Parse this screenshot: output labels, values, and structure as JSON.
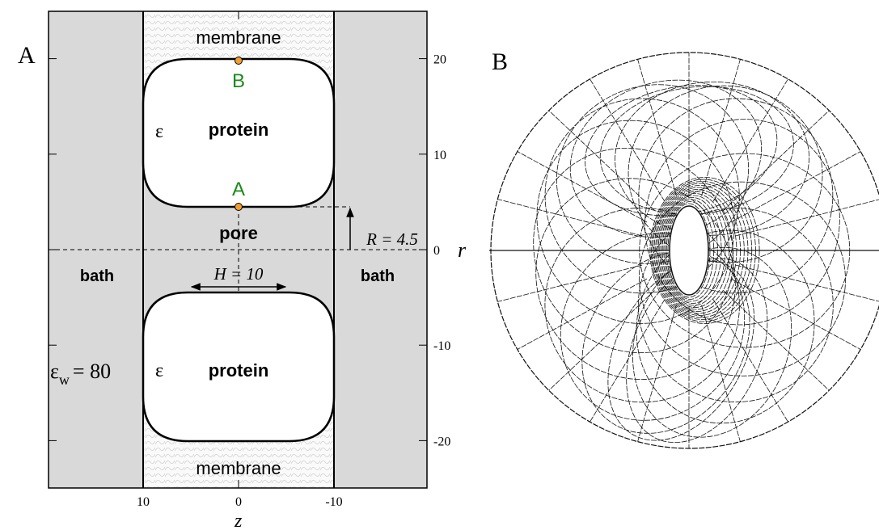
{
  "panel_a": {
    "label": "A",
    "regions": {
      "membrane_top": "membrane",
      "membrane_bottom": "membrane",
      "protein_top": "protein",
      "protein_bottom": "protein",
      "epsilon_top": "ε",
      "epsilon_bottom": "ε",
      "pore": "pore",
      "bath_left": "bath",
      "bath_right": "bath"
    },
    "points": {
      "top": "B",
      "bottom": "A"
    },
    "dimensions": {
      "H": "H = 10",
      "R": "R = 4.5"
    },
    "epsilon_w": {
      "symbol": "ε",
      "subscript": "w",
      "value": "= 80"
    },
    "r_axis": {
      "label": "r",
      "ticks": [
        20,
        10,
        0,
        -10,
        -20
      ]
    },
    "z_axis": {
      "label": "z",
      "ticks": [
        10,
        0,
        -10
      ]
    }
  },
  "panel_b": {
    "label": "B"
  }
}
